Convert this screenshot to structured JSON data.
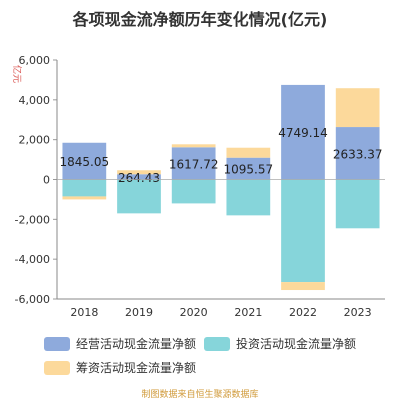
{
  "title": "各项现金流净额历年变化情况(亿元)",
  "source": "制图数据来自恒生聚源数据库",
  "colors": {
    "operating": "#8eaadc",
    "investing": "#86d5da",
    "financing": "#fcd99b"
  },
  "chart_data": {
    "type": "bar",
    "stacked": true,
    "categories": [
      "2018",
      "2019",
      "2020",
      "2021",
      "2022",
      "2023"
    ],
    "ylabel": "亿元",
    "ylim": [
      -6000,
      6000
    ],
    "yticks": [
      -6000,
      -4000,
      -2000,
      0,
      2000,
      4000,
      6000
    ],
    "ytick_labels": [
      "-6,000",
      "-4,000",
      "-2,000",
      "0",
      "2,000",
      "4,000",
      "6,000"
    ],
    "grid": false,
    "legend_position": "bottom",
    "series": [
      {
        "name": "经营活动现金流量净额",
        "values": [
          1845.05,
          264.43,
          1617.72,
          1095.57,
          4749.14,
          2633.37
        ],
        "labels": [
          "1845.05",
          "264.43",
          "1617.72",
          "1095.57",
          "4749.14",
          "2633.37"
        ]
      },
      {
        "name": "投资活动现金流量净额",
        "values": [
          -850,
          -1700,
          -1200,
          -1800,
          -5150,
          -2450
        ]
      },
      {
        "name": "筹资活动现金流量净额",
        "values": [
          -150,
          200,
          150,
          500,
          -400,
          1950
        ]
      }
    ]
  }
}
